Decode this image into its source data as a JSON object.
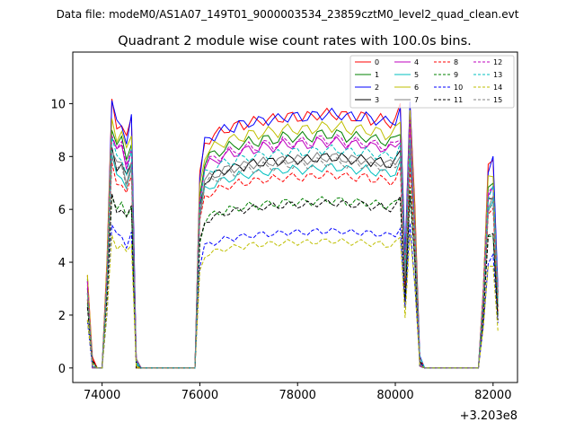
{
  "chart_data": {
    "type": "line",
    "suptitle": "Data file: modeM0/AS1A07_149T01_9000003534_23859cztM0_level2_quad_clean.evt",
    "title": "Quadrant 2 module wise count rates with 100.0s bins.",
    "x_offset_label": "+3.203e8",
    "xlim": [
      73400,
      82500
    ],
    "ylim": [
      -0.55,
      11.95
    ],
    "x_ticks": [
      74000,
      76000,
      78000,
      80000,
      82000
    ],
    "y_ticks": [
      0,
      2,
      4,
      6,
      8,
      10
    ],
    "x": [
      73700,
      73800,
      73900,
      74000,
      74100,
      74200,
      74300,
      74400,
      74500,
      74600,
      74700,
      74800,
      74900,
      75000,
      75100,
      75200,
      75300,
      75400,
      75500,
      75600,
      75700,
      75800,
      75900,
      76000,
      76100,
      76200,
      76300,
      76400,
      76500,
      76600,
      76700,
      76800,
      76900,
      77000,
      77100,
      77200,
      77300,
      77400,
      77500,
      77600,
      77700,
      77800,
      77900,
      78000,
      78100,
      78200,
      78300,
      78400,
      78500,
      78600,
      78700,
      78800,
      78900,
      79000,
      79100,
      79200,
      79300,
      79400,
      79500,
      79600,
      79700,
      79800,
      79900,
      80000,
      80100,
      80200,
      80300,
      80400,
      80500,
      80600,
      80700,
      80800,
      80900,
      81000,
      81100,
      81200,
      81300,
      81400,
      81500,
      81600,
      81700,
      81800,
      81900,
      82000,
      82100
    ],
    "shape": [
      0.35,
      0.02,
      0,
      0,
      0.4,
      1,
      0.92,
      0.93,
      0.86,
      0.94,
      0.02,
      0,
      0,
      0,
      0,
      0,
      0,
      0,
      0,
      0,
      0,
      0,
      0,
      0.72,
      0.85,
      0.87,
      0.88,
      0.89,
      0.9,
      0.91,
      0.91,
      0.92,
      0.92,
      0.93,
      0.93,
      0.93,
      0.94,
      0.94,
      0.94,
      0.94,
      0.95,
      0.95,
      0.95,
      0.95,
      0.95,
      0.95,
      0.95,
      0.96,
      0.96,
      0.96,
      0.96,
      0.96,
      0.96,
      0.95,
      0.95,
      0.95,
      0.95,
      0.95,
      0.94,
      0.94,
      0.94,
      0.93,
      0.93,
      0.94,
      0.98,
      0.4,
      1.02,
      0.6,
      0.03,
      0,
      0,
      0,
      0,
      0,
      0,
      0,
      0,
      0,
      0,
      0,
      0,
      0.3,
      0.75,
      0.78,
      0.3
    ],
    "series": [
      {
        "name": "0",
        "color": "#ff0000",
        "dash": "solid",
        "level": 10.0
      },
      {
        "name": "1",
        "color": "#008000",
        "dash": "solid",
        "level": 9.2
      },
      {
        "name": "2",
        "color": "#0000ff",
        "dash": "solid",
        "level": 10.0
      },
      {
        "name": "3",
        "color": "#000000",
        "dash": "solid",
        "level": 8.3
      },
      {
        "name": "4",
        "color": "#bf00bf",
        "dash": "solid",
        "level": 8.9
      },
      {
        "name": "5",
        "color": "#00bfbf",
        "dash": "solid",
        "level": 7.9
      },
      {
        "name": "6",
        "color": "#bfbf00",
        "dash": "solid",
        "level": 9.5
      },
      {
        "name": "7",
        "color": "#808080",
        "dash": "solid",
        "level": 8.3
      },
      {
        "name": "8",
        "color": "#ff0000",
        "dash": "dashed",
        "level": 7.6
      },
      {
        "name": "9",
        "color": "#008000",
        "dash": "dashed",
        "level": 6.6
      },
      {
        "name": "10",
        "color": "#0000ff",
        "dash": "dashed",
        "level": 5.4
      },
      {
        "name": "11",
        "color": "#000000",
        "dash": "dashed",
        "level": 6.5
      },
      {
        "name": "12",
        "color": "#bf00bf",
        "dash": "dashed",
        "level": 9.0
      },
      {
        "name": "13",
        "color": "#00bfbf",
        "dash": "dashed",
        "level": 8.6
      },
      {
        "name": "14",
        "color": "#bfbf00",
        "dash": "dashed",
        "level": 5.0
      },
      {
        "name": "15",
        "color": "#808080",
        "dash": "dashed",
        "level": 8.1
      }
    ],
    "legend_position": "upper right"
  }
}
